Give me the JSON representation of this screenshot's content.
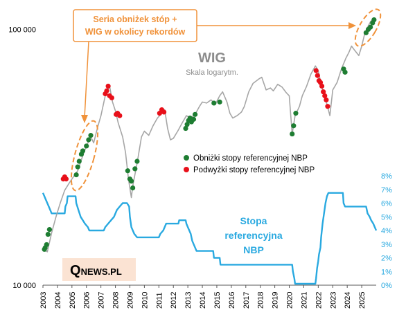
{
  "chart_data": {
    "type": "line",
    "title": "WIG",
    "subtitle": "Skala logarytm.",
    "left_axis": {
      "scale": "log",
      "range": [
        10000,
        115000
      ],
      "tick_labels": [
        {
          "value": 100000,
          "label": "100 000"
        },
        {
          "value": 10000,
          "label": "10 000"
        }
      ]
    },
    "right_axis": {
      "unit": "%",
      "range": [
        0,
        8
      ],
      "ticks": [
        0,
        1,
        2,
        3,
        4,
        5,
        6,
        7,
        8
      ],
      "tick_labels": [
        "0%",
        "1%",
        "2%",
        "3%",
        "4%",
        "5%",
        "6%",
        "7%",
        "8%"
      ],
      "color": "#29a9e0"
    },
    "x_axis": {
      "range": [
        2003.0,
        2026.0
      ],
      "years": [
        2003,
        2004,
        2005,
        2006,
        2007,
        2008,
        2009,
        2010,
        2011,
        2012,
        2013,
        2014,
        2015,
        2016,
        2017,
        2018,
        2019,
        2020,
        2021,
        2022,
        2023,
        2024,
        2025
      ]
    },
    "colors": {
      "wig": "#a6a6a6",
      "rate": "#29a9e0",
      "cut": "#1e7d32",
      "hike": "#e8101a",
      "annotation": "#f0923a",
      "title": "#8c8c8c"
    },
    "series": [
      {
        "name": "WIG",
        "axis": "left",
        "points": [
          [
            2003.0,
            13800
          ],
          [
            2003.3,
            13500
          ],
          [
            2003.6,
            16000
          ],
          [
            2003.9,
            18500
          ],
          [
            2004.2,
            21000
          ],
          [
            2004.5,
            23500
          ],
          [
            2004.8,
            25000
          ],
          [
            2005.1,
            26500
          ],
          [
            2005.4,
            28000
          ],
          [
            2005.7,
            31500
          ],
          [
            2006.0,
            35000
          ],
          [
            2006.3,
            38000
          ],
          [
            2006.5,
            36000
          ],
          [
            2006.8,
            42000
          ],
          [
            2007.0,
            46000
          ],
          [
            2007.3,
            55000
          ],
          [
            2007.6,
            60000
          ],
          [
            2007.8,
            52000
          ],
          [
            2008.0,
            48000
          ],
          [
            2008.2,
            43000
          ],
          [
            2008.5,
            38000
          ],
          [
            2008.7,
            33000
          ],
          [
            2008.9,
            26000
          ],
          [
            2009.1,
            22000
          ],
          [
            2009.2,
            24500
          ],
          [
            2009.5,
            30000
          ],
          [
            2009.8,
            38000
          ],
          [
            2010.0,
            40000
          ],
          [
            2010.3,
            38500
          ],
          [
            2010.6,
            42000
          ],
          [
            2010.9,
            45000
          ],
          [
            2011.2,
            47000
          ],
          [
            2011.4,
            48500
          ],
          [
            2011.6,
            41000
          ],
          [
            2011.8,
            37000
          ],
          [
            2012.0,
            37500
          ],
          [
            2012.3,
            40000
          ],
          [
            2012.6,
            43000
          ],
          [
            2012.9,
            46000
          ],
          [
            2013.2,
            45000
          ],
          [
            2013.5,
            46500
          ],
          [
            2013.8,
            50000
          ],
          [
            2014.0,
            52000
          ],
          [
            2014.3,
            51500
          ],
          [
            2014.6,
            53000
          ],
          [
            2014.9,
            51000
          ],
          [
            2015.2,
            55000
          ],
          [
            2015.4,
            57000
          ],
          [
            2015.7,
            52000
          ],
          [
            2015.9,
            47000
          ],
          [
            2016.1,
            45000
          ],
          [
            2016.4,
            46000
          ],
          [
            2016.7,
            47500
          ],
          [
            2016.9,
            50000
          ],
          [
            2017.2,
            57000
          ],
          [
            2017.5,
            61500
          ],
          [
            2017.9,
            64000
          ],
          [
            2018.1,
            65000
          ],
          [
            2018.4,
            58000
          ],
          [
            2018.7,
            59000
          ],
          [
            2018.9,
            57500
          ],
          [
            2019.2,
            61000
          ],
          [
            2019.5,
            59500
          ],
          [
            2019.8,
            56500
          ],
          [
            2020.0,
            55000
          ],
          [
            2020.2,
            39000
          ],
          [
            2020.4,
            46000
          ],
          [
            2020.7,
            50000
          ],
          [
            2020.9,
            55000
          ],
          [
            2021.2,
            60000
          ],
          [
            2021.5,
            67000
          ],
          [
            2021.8,
            72000
          ],
          [
            2022.0,
            69000
          ],
          [
            2022.2,
            61000
          ],
          [
            2022.4,
            55000
          ],
          [
            2022.6,
            51000
          ],
          [
            2022.8,
            46000
          ],
          [
            2023.0,
            58000
          ],
          [
            2023.3,
            62000
          ],
          [
            2023.6,
            70000
          ],
          [
            2023.9,
            77000
          ],
          [
            2024.1,
            81000
          ],
          [
            2024.3,
            86000
          ],
          [
            2024.5,
            83000
          ],
          [
            2024.8,
            79000
          ],
          [
            2025.0,
            86000
          ],
          [
            2025.2,
            96000
          ],
          [
            2025.4,
            102000
          ],
          [
            2025.6,
            107000
          ],
          [
            2025.8,
            110000
          ]
        ]
      },
      {
        "name": "Stopa referencyjna NBP",
        "axis": "right",
        "points": [
          [
            2003.0,
            6.75
          ],
          [
            2003.1,
            6.5
          ],
          [
            2003.2,
            6.25
          ],
          [
            2003.3,
            6.0
          ],
          [
            2003.4,
            5.75
          ],
          [
            2003.5,
            5.5
          ],
          [
            2003.6,
            5.25
          ],
          [
            2004.5,
            5.25
          ],
          [
            2004.55,
            5.75
          ],
          [
            2004.65,
            6.0
          ],
          [
            2004.7,
            6.5
          ],
          [
            2005.25,
            6.5
          ],
          [
            2005.3,
            6.0
          ],
          [
            2005.45,
            5.5
          ],
          [
            2005.6,
            5.0
          ],
          [
            2005.75,
            4.75
          ],
          [
            2005.9,
            4.5
          ],
          [
            2006.1,
            4.25
          ],
          [
            2006.2,
            4.0
          ],
          [
            2007.2,
            4.0
          ],
          [
            2007.3,
            4.25
          ],
          [
            2007.5,
            4.5
          ],
          [
            2007.7,
            4.75
          ],
          [
            2007.9,
            5.0
          ],
          [
            2008.1,
            5.5
          ],
          [
            2008.3,
            5.75
          ],
          [
            2008.5,
            6.0
          ],
          [
            2008.8,
            6.0
          ],
          [
            2008.95,
            5.75
          ],
          [
            2009.0,
            5.0
          ],
          [
            2009.1,
            4.25
          ],
          [
            2009.2,
            4.0
          ],
          [
            2009.3,
            3.75
          ],
          [
            2009.5,
            3.5
          ],
          [
            2011.0,
            3.5
          ],
          [
            2011.1,
            3.75
          ],
          [
            2011.3,
            4.0
          ],
          [
            2011.4,
            4.25
          ],
          [
            2011.5,
            4.5
          ],
          [
            2012.35,
            4.5
          ],
          [
            2012.4,
            4.75
          ],
          [
            2012.85,
            4.75
          ],
          [
            2012.9,
            4.5
          ],
          [
            2013.0,
            4.25
          ],
          [
            2013.1,
            4.0
          ],
          [
            2013.2,
            3.75
          ],
          [
            2013.3,
            3.25
          ],
          [
            2013.4,
            3.0
          ],
          [
            2013.5,
            2.75
          ],
          [
            2013.6,
            2.5
          ],
          [
            2014.75,
            2.5
          ],
          [
            2014.8,
            2.0
          ],
          [
            2015.2,
            2.0
          ],
          [
            2015.25,
            1.5
          ],
          [
            2020.2,
            1.5
          ],
          [
            2020.25,
            1.0
          ],
          [
            2020.35,
            0.5
          ],
          [
            2020.4,
            0.1
          ],
          [
            2021.8,
            0.1
          ],
          [
            2021.85,
            0.5
          ],
          [
            2021.92,
            1.25
          ],
          [
            2022.0,
            1.75
          ],
          [
            2022.05,
            2.25
          ],
          [
            2022.15,
            2.75
          ],
          [
            2022.2,
            3.5
          ],
          [
            2022.3,
            4.5
          ],
          [
            2022.4,
            5.25
          ],
          [
            2022.5,
            6.0
          ],
          [
            2022.6,
            6.5
          ],
          [
            2022.7,
            6.75
          ],
          [
            2023.7,
            6.75
          ],
          [
            2023.75,
            6.0
          ],
          [
            2023.85,
            5.75
          ],
          [
            2025.3,
            5.75
          ],
          [
            2025.4,
            5.25
          ],
          [
            2025.55,
            5.0
          ],
          [
            2025.65,
            4.75
          ],
          [
            2025.8,
            4.5
          ],
          [
            2025.9,
            4.25
          ],
          [
            2026.0,
            4.0
          ]
        ]
      }
    ],
    "cuts": [
      [
        2003.1,
        13800
      ],
      [
        2003.15,
        14000
      ],
      [
        2003.25,
        14400
      ],
      [
        2003.35,
        15800
      ],
      [
        2003.45,
        16500
      ],
      [
        2005.3,
        27000
      ],
      [
        2005.4,
        29000
      ],
      [
        2005.5,
        30500
      ],
      [
        2005.65,
        32500
      ],
      [
        2005.75,
        33500
      ],
      [
        2006.0,
        35000
      ],
      [
        2006.15,
        37000
      ],
      [
        2006.3,
        38500
      ],
      [
        2008.85,
        28000
      ],
      [
        2009.0,
        26000
      ],
      [
        2009.1,
        25500
      ],
      [
        2009.2,
        24000
      ],
      [
        2009.35,
        28500
      ],
      [
        2009.5,
        30500
      ],
      [
        2012.85,
        41000
      ],
      [
        2012.95,
        42500
      ],
      [
        2013.05,
        44000
      ],
      [
        2013.15,
        45000
      ],
      [
        2013.25,
        43500
      ],
      [
        2013.4,
        44500
      ],
      [
        2013.5,
        46500
      ],
      [
        2014.8,
        51500
      ],
      [
        2015.2,
        52000
      ],
      [
        2020.2,
        39000
      ],
      [
        2020.3,
        42000
      ],
      [
        2020.45,
        47000
      ],
      [
        2023.75,
        70000
      ],
      [
        2023.85,
        68000
      ],
      [
        2025.3,
        97000
      ],
      [
        2025.45,
        100000
      ],
      [
        2025.6,
        102000
      ],
      [
        2025.75,
        106000
      ],
      [
        2025.85,
        109000
      ]
    ],
    "hikes": [
      [
        2004.4,
        26000
      ],
      [
        2004.5,
        26500
      ],
      [
        2004.6,
        26000
      ],
      [
        2007.3,
        56000
      ],
      [
        2007.4,
        57500
      ],
      [
        2007.5,
        60000
      ],
      [
        2007.6,
        55000
      ],
      [
        2007.75,
        54000
      ],
      [
        2008.05,
        46500
      ],
      [
        2008.15,
        47000
      ],
      [
        2008.3,
        46000
      ],
      [
        2011.05,
        47000
      ],
      [
        2011.2,
        48500
      ],
      [
        2011.35,
        47500
      ],
      [
        2021.85,
        69000
      ],
      [
        2021.95,
        66000
      ],
      [
        2022.05,
        63000
      ],
      [
        2022.15,
        62000
      ],
      [
        2022.25,
        60000
      ],
      [
        2022.35,
        57000
      ],
      [
        2022.45,
        55000
      ],
      [
        2022.55,
        53000
      ],
      [
        2022.65,
        50000
      ]
    ],
    "legend": [
      {
        "name": "Obniżki stopy referencyjnej NBP",
        "color": "#1e7d32"
      },
      {
        "name": "Podwyżki stopy referencyjnej NBP",
        "color": "#e8101a"
      }
    ],
    "rate_label": [
      "Stopa",
      "referencyjna",
      "NBP"
    ],
    "annotation": [
      "Seria obniżek stóp +",
      "WIG w okolicy rekordów"
    ],
    "watermark": {
      "q": "Q",
      "rest": "NEWS.PL"
    }
  }
}
